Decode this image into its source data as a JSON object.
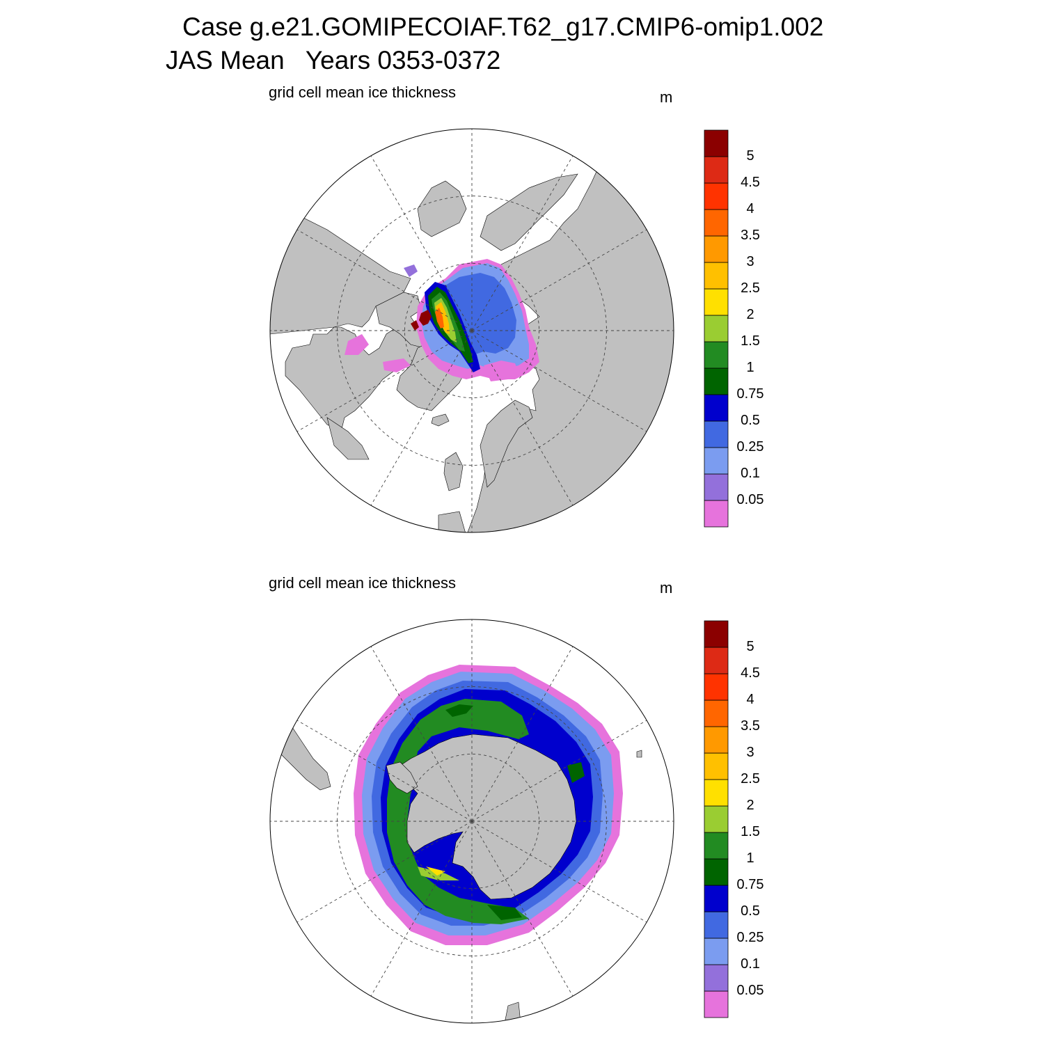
{
  "header": {
    "case_line": "Case g.e21.GOMIPECOIAF.T62_g17.CMIP6-omip1.002",
    "period_line": "JAS Mean   Years 0353-0372"
  },
  "colors": {
    "land": "#c0c0c0",
    "ocean": "#ffffff",
    "levels": [
      "#e673dc",
      "#9370db",
      "#7b9cf0",
      "#4169e1",
      "#0000cd",
      "#006400",
      "#228b22",
      "#9acd32",
      "#ffe000",
      "#ffc000",
      "#ff9900",
      "#ff6600",
      "#ff3300",
      "#dd2a15",
      "#8b0000"
    ]
  },
  "panels": [
    {
      "id": "arctic",
      "title": "grid cell mean ice thickness",
      "units": "m",
      "hemisphere": "north"
    },
    {
      "id": "antarctic",
      "title": "grid cell mean ice thickness",
      "units": "m",
      "hemisphere": "south"
    }
  ],
  "colorbar": {
    "labels": [
      "5",
      "4.5",
      "4",
      "3.5",
      "3",
      "2.5",
      "2",
      "1.5",
      "1",
      "0.75",
      "0.5",
      "0.25",
      "0.1",
      "0.05"
    ]
  }
}
